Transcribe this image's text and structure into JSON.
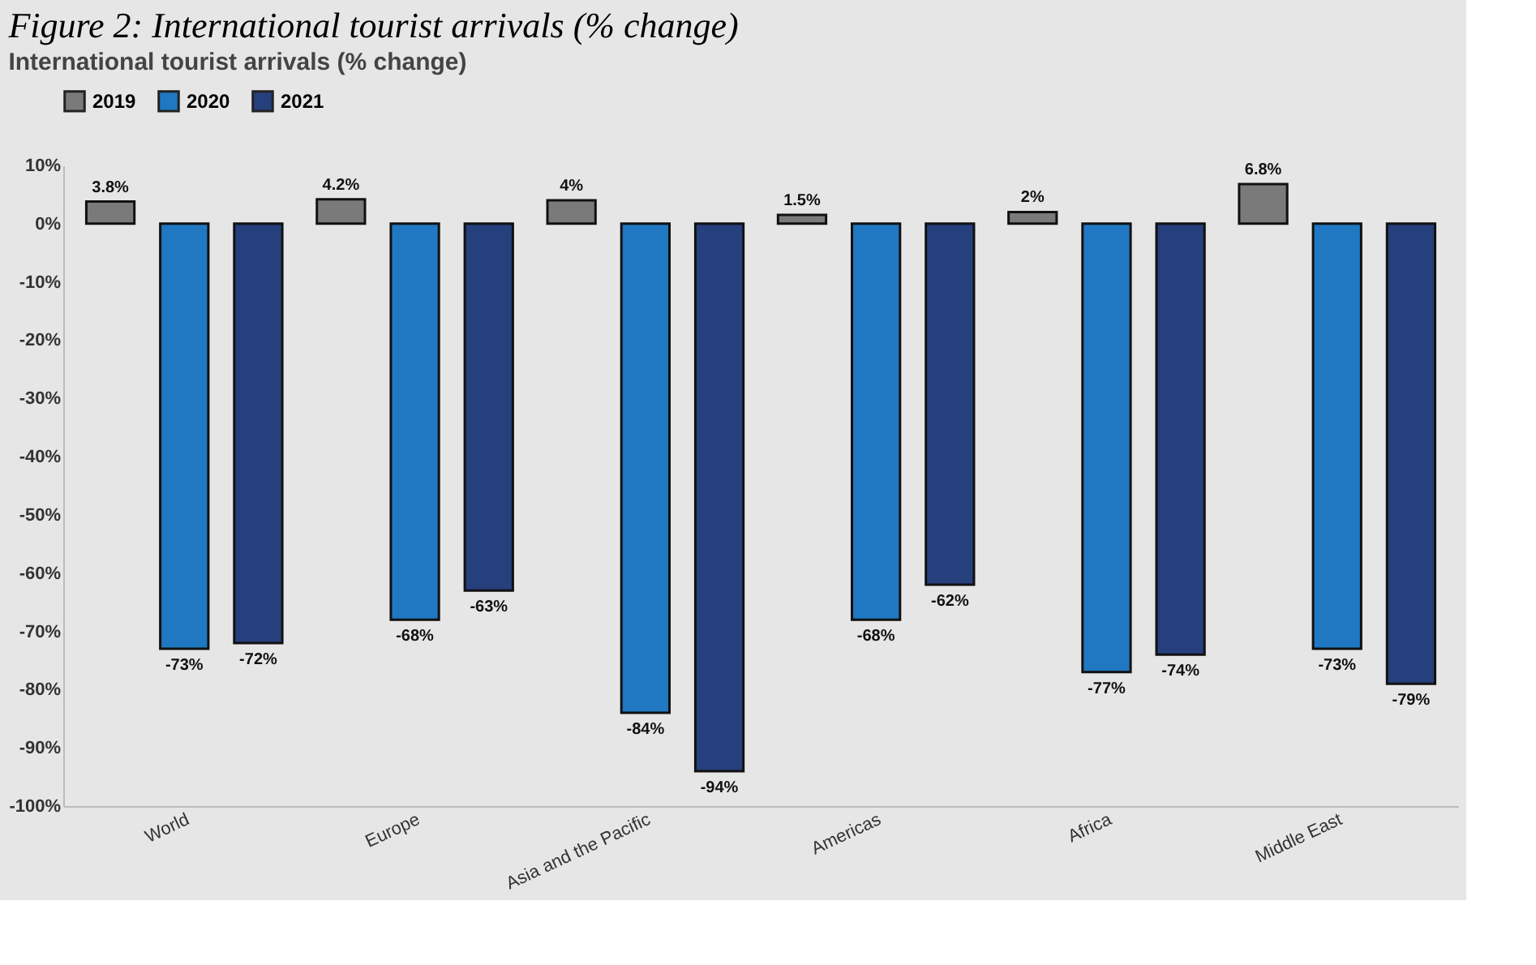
{
  "chart_data": {
    "type": "bar",
    "title": "Figure 2: International tourist arrivals (% change)",
    "subtitle": "International tourist arrivals (% change)",
    "categories": [
      "World",
      "Europe",
      "Asia and the Pacific",
      "Americas",
      "Africa",
      "Middle East"
    ],
    "series": [
      {
        "name": "2019",
        "color": "#7a7a7a",
        "values": [
          3.8,
          4.2,
          4,
          1.5,
          2,
          6.8
        ],
        "value_labels": [
          "3.8%",
          "4.2%",
          "4%",
          "1.5%",
          "2%",
          "6.8%"
        ]
      },
      {
        "name": "2020",
        "color": "#1f78c1",
        "values": [
          -73,
          -68,
          -84,
          -68,
          -77,
          -73
        ],
        "value_labels": [
          "-73%",
          "-68%",
          "-84%",
          "-68%",
          "-77%",
          "-73%"
        ]
      },
      {
        "name": "2021",
        "color": "#263f7d",
        "values": [
          -72,
          -63,
          -94,
          -62,
          -74,
          -79
        ],
        "value_labels": [
          "-72%",
          "-63%",
          "-94%",
          "-62%",
          "-74%",
          "-79%"
        ]
      }
    ],
    "ylim": [
      -100,
      10
    ],
    "yticks": [
      {
        "value": 10,
        "label": "10%"
      },
      {
        "value": 0,
        "label": "0%"
      },
      {
        "value": -10,
        "label": "-10%"
      },
      {
        "value": -20,
        "label": "-20%"
      },
      {
        "value": -30,
        "label": "-30%"
      },
      {
        "value": -40,
        "label": "-40%"
      },
      {
        "value": -50,
        "label": "-50%"
      },
      {
        "value": -60,
        "label": "-60%"
      },
      {
        "value": -70,
        "label": "-70%"
      },
      {
        "value": -80,
        "label": "-80%"
      },
      {
        "value": -90,
        "label": "-90%"
      },
      {
        "value": -100,
        "label": "-100%"
      }
    ],
    "legend": "top left",
    "grid": false
  }
}
